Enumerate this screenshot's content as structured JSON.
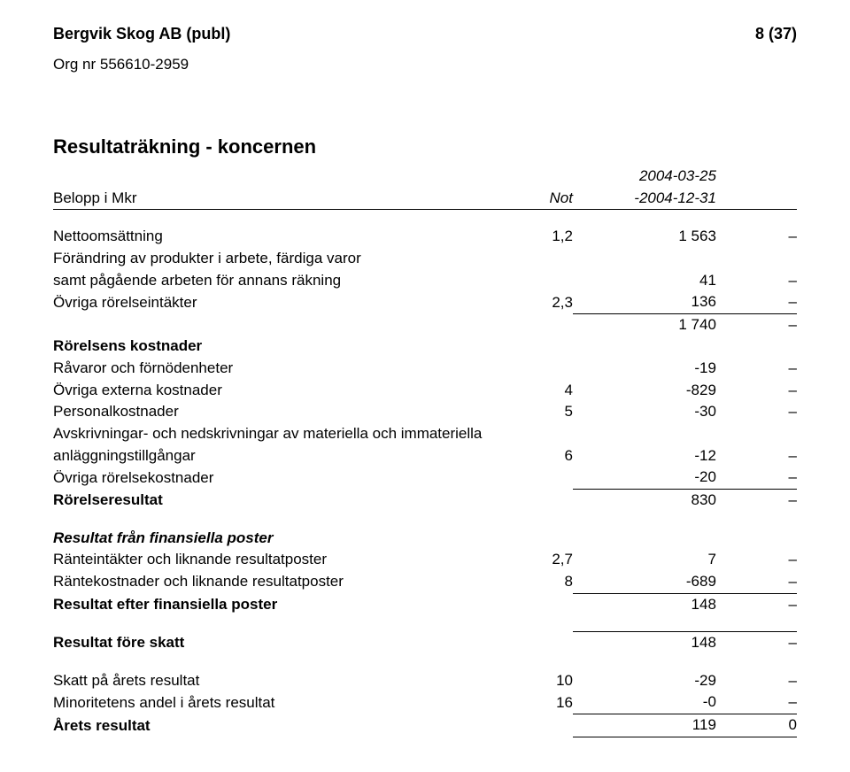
{
  "header": {
    "company_name": "Bergvik Skog AB (publ)",
    "page_number": "8 (37)",
    "org_nr": "Org nr 556610-2959"
  },
  "section_title": "Resultaträkning - koncernen",
  "table_header": {
    "label": "Belopp i Mkr",
    "not_label": "Not",
    "period_top": "2004-03-25",
    "period_bottom": "-2004-12-31"
  },
  "rows": {
    "nettooms_label": "Nettoomsättning",
    "nettooms_not": "1,2",
    "nettooms_val": "1 563",
    "nettooms_dash": "–",
    "forandr_l1": "Förändring av produkter i arbete, färdiga varor",
    "forandr_l2": "samt pågående arbeten för annans räkning",
    "forandr_val": "41",
    "forandr_dash": "–",
    "ovrintakter_label": "Övriga rörelseintäkter",
    "ovrintakter_not": "2,3",
    "ovrintakter_val": "136",
    "ovrintakter_dash": "–",
    "sum_intakter_val": "1 740",
    "sum_intakter_dash": "–",
    "rorelsens_kostnader_label": "Rörelsens kostnader",
    "ravaror_label": "Råvaror och förnödenheter",
    "ravaror_val": "-19",
    "ravaror_dash": "–",
    "externa_label": "Övriga externa kostnader",
    "externa_not": "4",
    "externa_val": "-829",
    "externa_dash": "–",
    "pers_label": "Personalkostnader",
    "pers_not": "5",
    "pers_val": "-30",
    "pers_dash": "–",
    "avskr_l1": "Avskrivningar- och nedskrivningar av materiella och immateriella",
    "avskr_l2": "anläggningstillgångar",
    "avskr_not": "6",
    "avskr_val": "-12",
    "avskr_dash": "–",
    "ovrkostn_label": "Övriga rörelsekostnader",
    "ovrkostn_val": "-20",
    "ovrkostn_dash": "–",
    "rorelseresultat_label": "Rörelseresultat",
    "rorelseresultat_val": "830",
    "rorelseresultat_dash": "–",
    "res_fin_poster_label": "Resultat från finansiella poster",
    "ranteint_label": "Ränteintäkter och liknande resultatposter",
    "ranteint_not": "2,7",
    "ranteint_val": "7",
    "ranteint_dash": "–",
    "rantekost_label": "Räntekostnader och liknande resultatposter",
    "rantekost_not": "8",
    "rantekost_val": "-689",
    "rantekost_dash": "–",
    "res_efter_fin_label": "Resultat efter finansiella poster",
    "res_efter_fin_val": "148",
    "res_efter_fin_dash": "–",
    "res_fore_skatt_label": "Resultat före skatt",
    "res_fore_skatt_val": "148",
    "res_fore_skatt_dash": "–",
    "skatt_label": "Skatt på årets resultat",
    "skatt_not": "10",
    "skatt_val": "-29",
    "skatt_dash": "–",
    "minoritet_label": "Minoritetens andel i årets resultat",
    "minoritet_not": "16",
    "minoritet_val": "-0",
    "minoritet_dash": "–",
    "arets_label": "Årets resultat",
    "arets_val": "119",
    "arets_dash": "0"
  }
}
